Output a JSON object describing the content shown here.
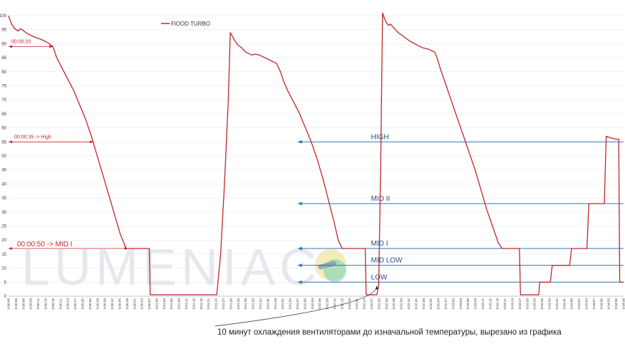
{
  "colors": {
    "series": "#c0262a",
    "level_line": "#2e75b6",
    "grid": "#e3e3e3",
    "watermark": "#e5e9ef",
    "badge_fill": "#f3e9a9",
    "badge_teal": "#7fd1b9"
  },
  "watermark": "LUMENIAC",
  "caption": "10 минут охлаждения вентиляторами до изначальной температуры, вырезано из графика",
  "chart_data": {
    "type": "line",
    "ylim": [
      0,
      100
    ],
    "yticks": [
      0,
      5,
      10,
      15,
      20,
      25,
      30,
      35,
      40,
      45,
      50,
      55,
      60,
      65,
      70,
      75,
      80,
      85,
      90,
      95,
      100
    ],
    "x_tick_labels": [
      "0:00:00",
      "0:00:03",
      "0:00:06",
      "0:00:09",
      "0:00:12",
      "0:00:15",
      "0:00:18",
      "0:00:21",
      "0:00:24",
      "0:00:27",
      "0:00:30",
      "0:00:33",
      "0:00:36",
      "0:00:39",
      "0:00:42",
      "0:00:45",
      "0:00:48",
      "0:00:51",
      "0:00:54",
      "0:00:57",
      "0:01:00",
      "0:01:03",
      "0:01:06",
      "0:01:09",
      "0:01:12",
      "0:01:15",
      "0:01:18",
      "0:01:21",
      "0:01:24",
      "0:01:27",
      "0:01:30",
      "0:01:33",
      "0:01:36",
      "0:01:39",
      "0:01:42",
      "0:01:45",
      "0:01:48",
      "0:01:51",
      "0:01:54",
      "0:01:57",
      "0:02:00",
      "0:02:03",
      "0:02:06",
      "0:02:09",
      "0:02:12",
      "0:02:15",
      "0:02:18",
      "0:02:21",
      "0:02:24",
      "0:02:27",
      "0:02:30",
      "0:02:33",
      "0:02:36",
      "0:02:39",
      "0:02:42",
      "0:02:45",
      "0:02:48",
      "0:02:51",
      "0:02:54",
      "0:02:57",
      "0:03:00",
      "0:03:03",
      "0:03:06",
      "0:03:09",
      "0:03:12",
      "0:03:15",
      "0:03:18",
      "0:03:21",
      "0:03:24",
      "0:03:27",
      "0:03:30",
      "0:03:33",
      "0:03:36",
      "0:03:39",
      "0:03:42",
      "0:03:45",
      "0:03:48",
      "0:03:51",
      "0:03:54",
      "0:03:57",
      "0:04:00",
      "0:04:03",
      "0:04:06",
      "0:04:09"
    ],
    "xlim_seconds": [
      0,
      250
    ],
    "series": [
      {
        "name": "FlOOD TURBO",
        "points": [
          [
            0,
            100
          ],
          [
            1,
            98
          ],
          [
            2,
            96.5
          ],
          [
            3,
            95.5
          ],
          [
            4,
            95
          ],
          [
            5,
            94.5
          ],
          [
            6,
            95.3
          ],
          [
            7,
            95
          ],
          [
            8,
            94.5
          ],
          [
            10,
            93.5
          ],
          [
            13,
            92.5
          ],
          [
            17,
            91.5
          ],
          [
            20,
            90.5
          ],
          [
            22,
            89.5
          ],
          [
            23,
            89
          ],
          [
            25,
            85
          ],
          [
            28,
            81
          ],
          [
            31,
            77
          ],
          [
            34,
            73
          ],
          [
            37,
            68
          ],
          [
            40,
            63
          ],
          [
            43,
            57
          ],
          [
            46,
            50
          ],
          [
            49,
            43
          ],
          [
            52,
            36
          ],
          [
            55,
            29
          ],
          [
            58,
            22
          ],
          [
            61,
            17
          ],
          [
            63,
            17
          ],
          [
            67,
            17
          ],
          [
            71,
            17
          ],
          [
            73,
            17
          ],
          [
            73.5,
            0.5
          ],
          [
            84,
            0.5
          ],
          [
            95,
            0.5
          ],
          [
            107,
            0.5
          ],
          [
            108,
            0.5
          ],
          [
            110,
            15
          ],
          [
            112,
            40
          ],
          [
            114,
            70
          ],
          [
            115,
            94
          ],
          [
            117,
            91.5
          ],
          [
            119,
            89.5
          ],
          [
            121,
            88.5
          ],
          [
            123,
            87
          ],
          [
            126,
            86
          ],
          [
            128,
            86.3
          ],
          [
            130,
            86
          ],
          [
            133,
            85
          ],
          [
            136,
            84
          ],
          [
            139,
            83
          ],
          [
            141,
            80
          ],
          [
            143,
            76
          ],
          [
            145,
            73
          ],
          [
            148,
            69
          ],
          [
            151,
            65
          ],
          [
            154,
            60
          ],
          [
            157,
            55
          ],
          [
            160,
            49
          ],
          [
            163,
            42
          ],
          [
            166,
            34
          ],
          [
            169,
            26
          ],
          [
            171,
            20
          ],
          [
            173,
            17
          ],
          [
            176,
            17
          ],
          [
            180,
            17
          ],
          [
            184,
            17
          ],
          [
            185,
            17
          ],
          [
            185.5,
            0.5
          ],
          [
            191,
            0.5
          ],
          [
            192,
            4
          ],
          [
            193,
            45
          ],
          [
            194,
            101
          ],
          [
            195,
            99
          ],
          [
            196,
            97.5
          ],
          [
            197,
            96.5
          ],
          [
            198,
            97
          ],
          [
            200,
            95.5
          ],
          [
            202,
            94
          ],
          [
            205,
            92.5
          ],
          [
            208,
            91
          ],
          [
            212,
            89.5
          ],
          [
            215,
            88.5
          ],
          [
            218,
            88
          ],
          [
            221,
            87
          ],
          [
            222,
            85.5
          ],
          [
            224,
            81
          ],
          [
            227,
            75
          ],
          [
            230,
            69
          ],
          [
            233,
            63
          ],
          [
            236,
            57
          ],
          [
            239,
            51
          ],
          [
            242,
            45
          ],
          [
            245,
            38
          ],
          [
            248,
            31
          ],
          [
            251,
            25
          ],
          [
            254,
            19
          ],
          [
            256,
            17
          ],
          [
            260,
            17
          ],
          [
            264,
            17
          ],
          [
            265,
            17
          ],
          [
            265.5,
            0.5
          ],
          [
            274,
            0.5
          ],
          [
            275,
            0.5
          ],
          [
            275.5,
            5
          ],
          [
            281,
            5
          ],
          [
            282,
            11
          ],
          [
            291,
            11
          ],
          [
            292,
            17
          ],
          [
            300,
            17
          ],
          [
            301,
            33
          ],
          [
            309,
            33
          ],
          [
            310,
            57
          ],
          [
            312,
            56.5
          ],
          [
            315,
            56
          ],
          [
            316.5,
            56
          ],
          [
            317,
            5
          ],
          [
            319,
            5
          ]
        ]
      }
    ],
    "levels": [
      {
        "label": "HIGH",
        "y": 55
      },
      {
        "label": "MID II",
        "y": 33
      },
      {
        "label": "MID I",
        "y": 17
      },
      {
        "label": "MID LOW",
        "y": 11
      },
      {
        "label": "LOW",
        "y": 5
      }
    ],
    "annotations": [
      {
        "text": "00:00:20",
        "y": 89
      },
      {
        "text": "00:00:35 -> High",
        "y": 55
      },
      {
        "text": "00:00:50  -> MID I",
        "y": 17
      }
    ]
  }
}
